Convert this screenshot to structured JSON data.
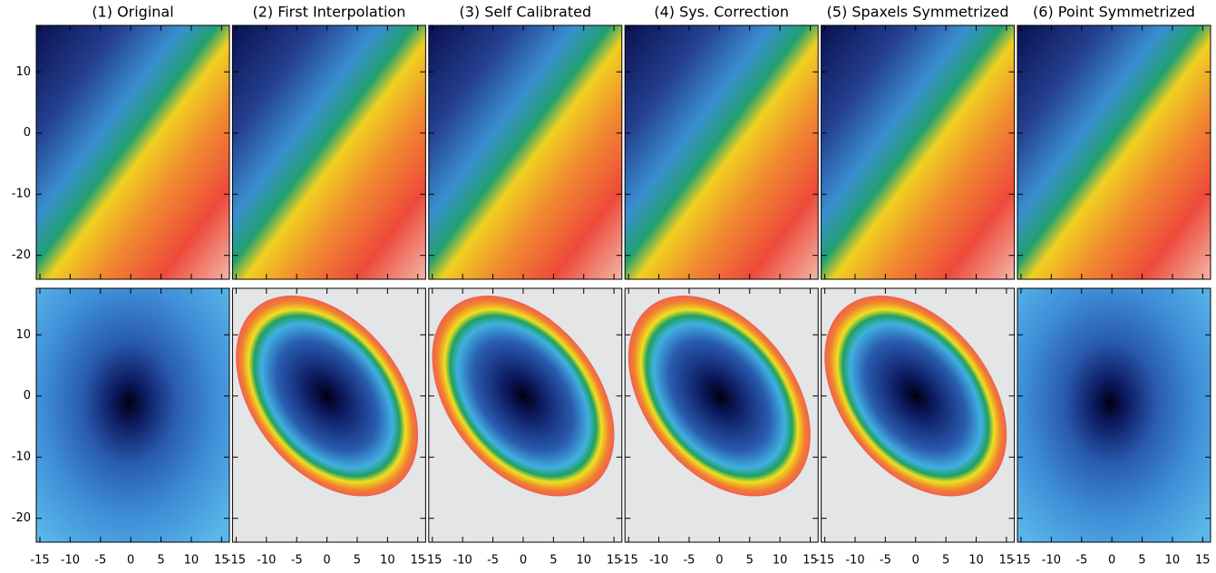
{
  "chart_data": {
    "type": "image",
    "titles": [
      "(1) Original",
      "(2) First Interpolation",
      "(3) Self Calibrated",
      "(4) Sys. Correction",
      "(5) Spaxels Symmetrized",
      "(6) Point Symmetrized"
    ],
    "xlim": [
      -15.6,
      16.3
    ],
    "ylim": [
      -23.9,
      17.6
    ],
    "xticks": [
      -15,
      -10,
      -5,
      0,
      5,
      10,
      15
    ],
    "yticks": [
      -20,
      -10,
      0,
      10
    ]
  }
}
